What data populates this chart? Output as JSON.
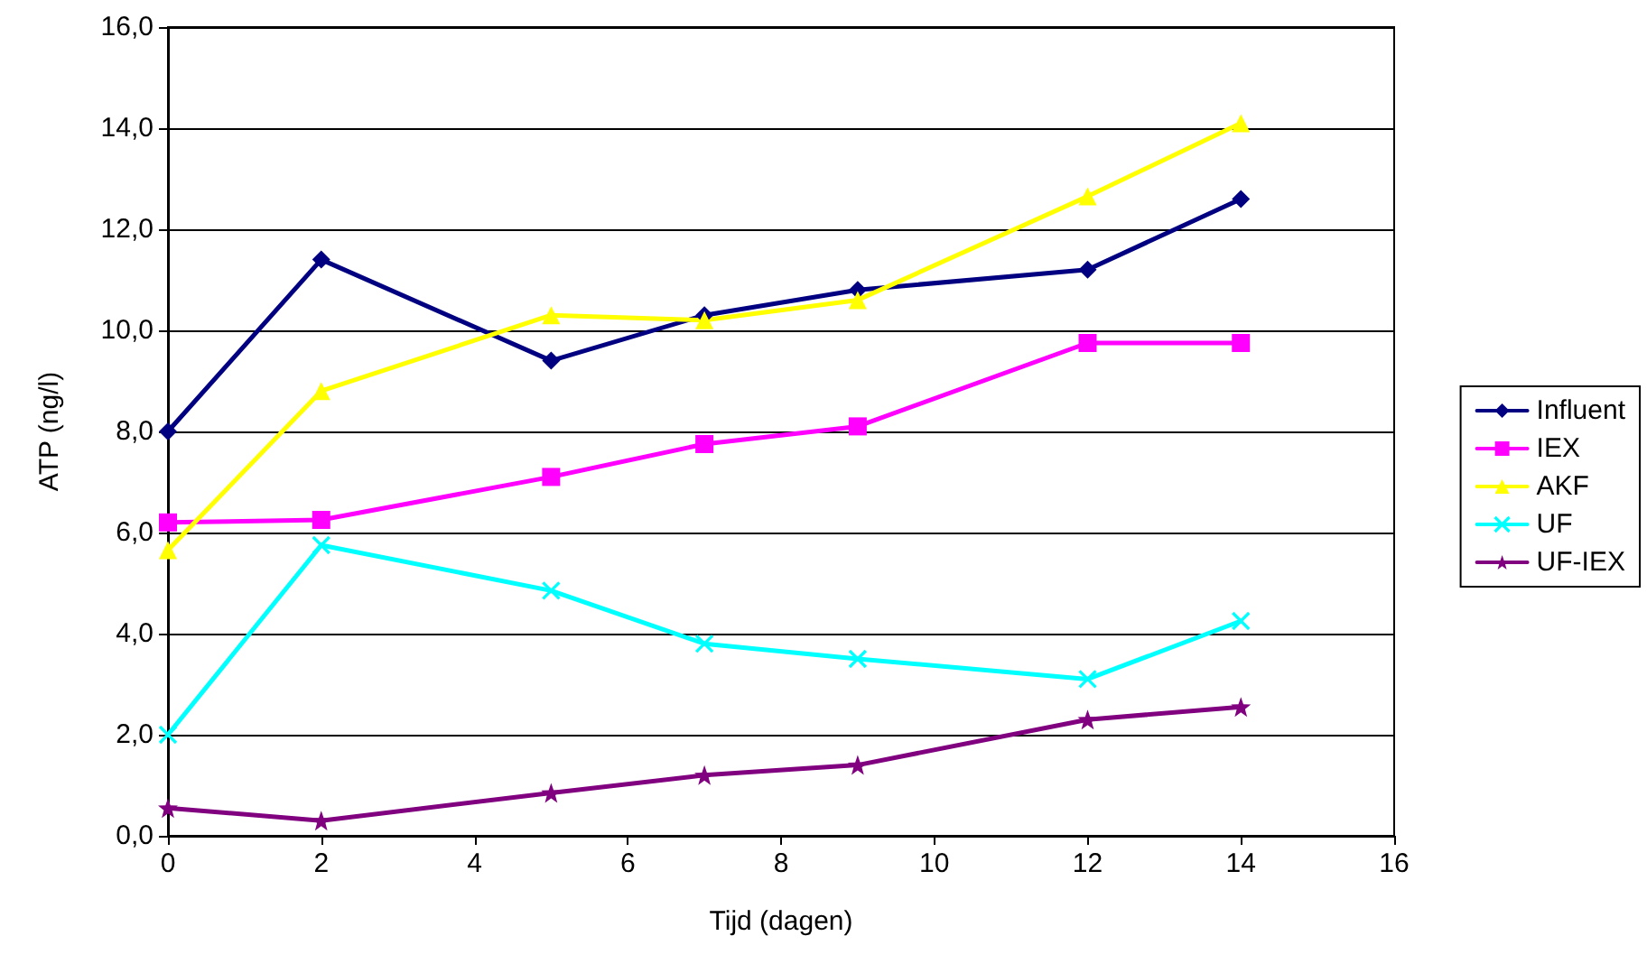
{
  "chart_data": {
    "type": "line",
    "xlabel": "Tijd (dagen)",
    "ylabel": "ATP (ng/l)",
    "x": [
      0,
      2,
      5,
      7,
      9,
      12,
      14
    ],
    "series": [
      {
        "name": "Influent",
        "color": "#000080",
        "marker": "diamond",
        "values": [
          8.0,
          11.4,
          9.4,
          10.3,
          10.8,
          11.2,
          12.6
        ]
      },
      {
        "name": "IEX",
        "color": "#ff00ff",
        "marker": "square",
        "values": [
          6.2,
          6.25,
          7.1,
          7.75,
          8.1,
          9.75,
          9.75
        ]
      },
      {
        "name": "AKF",
        "color": "#ffff00",
        "marker": "triangle",
        "values": [
          5.65,
          8.8,
          10.3,
          10.2,
          10.6,
          12.65,
          14.1
        ]
      },
      {
        "name": "UF",
        "color": "#00ffff",
        "marker": "cross",
        "values": [
          2.0,
          5.75,
          4.85,
          3.8,
          3.5,
          3.1,
          4.25
        ]
      },
      {
        "name": "UF-IEX",
        "color": "#800080",
        "marker": "star",
        "values": [
          0.55,
          0.3,
          0.85,
          1.2,
          1.4,
          2.3,
          2.55
        ]
      }
    ],
    "xlim": [
      0,
      16
    ],
    "xticks": [
      0,
      2,
      4,
      6,
      8,
      10,
      12,
      14,
      16
    ],
    "ylim": [
      0,
      16
    ],
    "yticks": [
      {
        "value": 0,
        "label": "0,0"
      },
      {
        "value": 2,
        "label": "2,0"
      },
      {
        "value": 4,
        "label": "4,0"
      },
      {
        "value": 6,
        "label": "6,0"
      },
      {
        "value": 8,
        "label": "8,0"
      },
      {
        "value": 10,
        "label": "10,0"
      },
      {
        "value": 12,
        "label": "12,0"
      },
      {
        "value": 14,
        "label": "14,0"
      },
      {
        "value": 16,
        "label": "16,0"
      }
    ],
    "grid": "y",
    "legend": "right",
    "line_style": "solid"
  }
}
